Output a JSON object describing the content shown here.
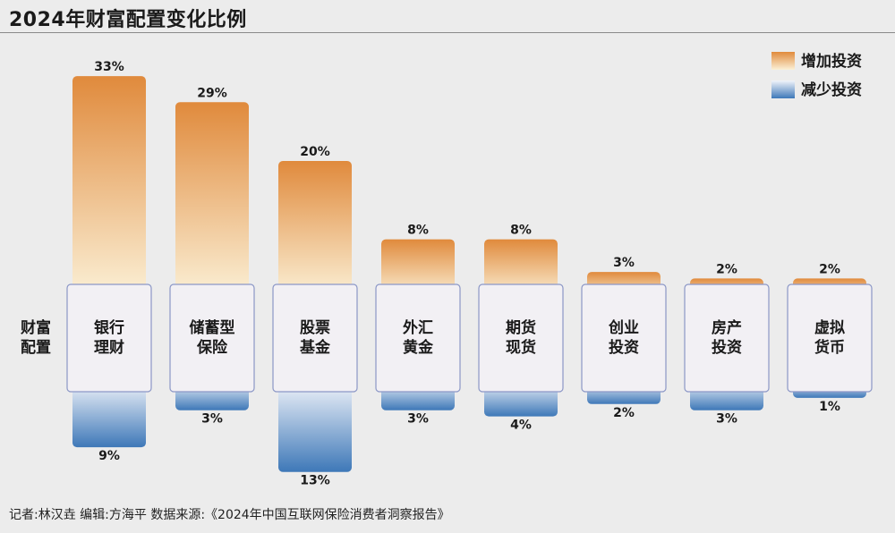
{
  "title": "2024年财富配置变化比例",
  "footer": "记者:林汉垚  编辑:方海平  数据来源:《2024年中国互联网保险消费者洞察报告》",
  "chart_data": {
    "type": "bar",
    "title": "2024年财富配置变化比例",
    "row_label": "财富\n配置",
    "categories": [
      "银行\n理财",
      "储蓄型\n保险",
      "股票\n基金",
      "外汇\n黄金",
      "期货\n现货",
      "创业\n投资",
      "房产\n投资",
      "虚拟\n货币"
    ],
    "series": [
      {
        "name": "增加投资",
        "values": [
          33,
          29,
          20,
          8,
          8,
          3,
          2,
          2
        ],
        "labels": [
          "33%",
          "29%",
          "20%",
          "8%",
          "8%",
          "3%",
          "2%",
          "2%"
        ]
      },
      {
        "name": "减少投资",
        "values": [
          9,
          3,
          13,
          3,
          4,
          2,
          3,
          1
        ],
        "labels": [
          "9%",
          "3%",
          "13%",
          "3%",
          "4%",
          "2%",
          "3%",
          "1%"
        ]
      }
    ],
    "legend_position": "top-right",
    "colors": {
      "increase_top": "#e08a3c",
      "increase_bottom": "#fbf0d6",
      "decrease_top": "#f1f4fa",
      "decrease_bottom": "#3e78b8",
      "box_fill": "#f2f0f4",
      "box_border": "#8b97c6"
    }
  }
}
